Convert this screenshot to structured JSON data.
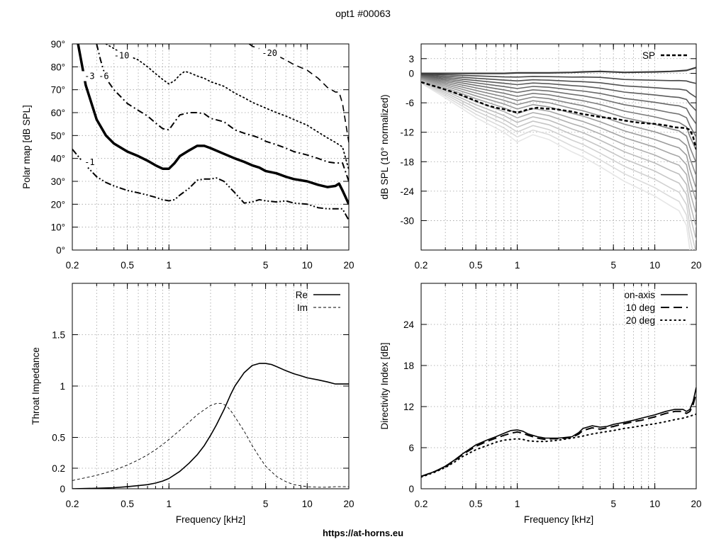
{
  "header": {
    "title": "opt1 #00063"
  },
  "footer": {
    "url": "https://at-horns.eu"
  },
  "chart_data": [
    {
      "id": "polar",
      "type": "line",
      "xlabel": "",
      "ylabel": "Polar map [dB SPL]",
      "xscale": "log",
      "xlim": [
        0.2,
        20
      ],
      "ylim": [
        0,
        90
      ],
      "xticks": [
        0.2,
        0.5,
        1,
        5,
        10,
        20
      ],
      "xtick_labels": [
        "0.2",
        "0.5",
        "1",
        "5",
        "10",
        "20"
      ],
      "yticks": [
        0,
        10,
        20,
        30,
        40,
        50,
        60,
        70,
        80,
        90
      ],
      "ytick_labels": [
        "0°",
        "10°",
        "20°",
        "30°",
        "40°",
        "50°",
        "60°",
        "70°",
        "80°",
        "90°"
      ],
      "grid": true,
      "series": [
        {
          "name": "-1",
          "style": "dashdotdot",
          "x": [
            0.2,
            0.25,
            0.3,
            0.35,
            0.4,
            0.5,
            0.6,
            0.7,
            0.8,
            0.9,
            1.0,
            1.1,
            1.2,
            1.4,
            1.6,
            1.8,
            2.0,
            2.2,
            2.5,
            3.0,
            3.5,
            4.0,
            4.5,
            5.0,
            6.0,
            7.0,
            8.0,
            10,
            12,
            14,
            16,
            18,
            20
          ],
          "y": [
            44,
            37,
            32,
            29.5,
            28,
            26,
            25,
            24,
            23,
            22,
            21.5,
            22,
            24,
            27,
            30.5,
            31,
            31,
            31.5,
            30,
            25,
            20.5,
            21,
            22,
            21.5,
            21,
            21.5,
            20.5,
            20,
            18.5,
            18,
            18,
            18,
            13
          ]
        },
        {
          "name": "-3",
          "style": "solid-bold",
          "x": [
            0.22,
            0.25,
            0.3,
            0.35,
            0.4,
            0.5,
            0.6,
            0.7,
            0.8,
            0.9,
            1.0,
            1.1,
            1.2,
            1.4,
            1.6,
            1.8,
            2.0,
            2.5,
            3.0,
            3.5,
            4.0,
            4.5,
            5.0,
            6.0,
            7.0,
            8.0,
            10,
            12,
            14,
            16,
            17,
            18,
            20
          ],
          "y": [
            90,
            72,
            57,
            50,
            46.5,
            43,
            41,
            39,
            37,
            35.5,
            35.5,
            38,
            41,
            43.5,
            45.5,
            45.5,
            44.5,
            42,
            40,
            38.5,
            37,
            36,
            34.5,
            33.5,
            32,
            31,
            30,
            28.5,
            27.5,
            28,
            29,
            26,
            20
          ]
        },
        {
          "name": "-6",
          "style": "dashdot",
          "x": [
            0.3,
            0.32,
            0.35,
            0.4,
            0.5,
            0.6,
            0.7,
            0.8,
            0.9,
            1.0,
            1.1,
            1.2,
            1.4,
            1.6,
            1.8,
            2.0,
            2.5,
            3.0,
            3.5,
            4.0,
            4.5,
            5.0,
            6.0,
            7.0,
            8.0,
            10,
            12,
            14,
            16,
            18,
            20
          ],
          "y": [
            90,
            83,
            75,
            70,
            64,
            61,
            58.5,
            55.5,
            53,
            52.5,
            56,
            59,
            60,
            60,
            59.5,
            57.5,
            56,
            52.5,
            51,
            50,
            49,
            47.5,
            46,
            44.5,
            43,
            41.5,
            40,
            38.5,
            38,
            38,
            30
          ]
        },
        {
          "name": "-10",
          "style": "dotted",
          "x": [
            0.35,
            0.4,
            0.45,
            0.5,
            0.6,
            0.7,
            0.8,
            0.9,
            1.0,
            1.1,
            1.2,
            1.3,
            1.4,
            1.6,
            1.8,
            2.0,
            2.5,
            3.0,
            3.5,
            4.0,
            5.0,
            6.0,
            7.0,
            8.0,
            10,
            12,
            14,
            16,
            18,
            20
          ],
          "y": [
            90,
            88,
            86,
            85,
            83,
            80,
            77,
            74.5,
            72.5,
            74,
            76.5,
            78,
            77.5,
            76,
            75,
            73.5,
            71.5,
            68.5,
            66.5,
            64.5,
            62,
            60,
            58.5,
            57,
            54.5,
            51.5,
            49,
            47,
            45,
            35
          ]
        },
        {
          "name": "-20",
          "style": "dashed",
          "x": [
            3.8,
            4.0,
            5.0,
            6.0,
            7.0,
            8.0,
            10,
            12,
            14,
            15,
            16,
            17,
            18,
            20
          ],
          "y": [
            90,
            89,
            87,
            85,
            83,
            81,
            78.5,
            75,
            71,
            70,
            69,
            69,
            64,
            47
          ]
        }
      ],
      "contour_labels": [
        {
          "text": "-1",
          "x": 0.245,
          "y": 37.5
        },
        {
          "text": "-3",
          "x": 0.245,
          "y": 75
        },
        {
          "text": "-6",
          "x": 0.31,
          "y": 75
        },
        {
          "text": "-10",
          "x": 0.4,
          "y": 84
        },
        {
          "text": "-20",
          "x": 4.7,
          "y": 85
        }
      ]
    },
    {
      "id": "spl",
      "type": "line",
      "xlabel": "",
      "ylabel": "dB SPL (10° normalized)",
      "xscale": "log",
      "xlim": [
        0.2,
        20
      ],
      "ylim": [
        -36,
        6
      ],
      "xticks": [
        0.2,
        0.5,
        1,
        5,
        10,
        20
      ],
      "xtick_labels": [
        "0.2",
        "0.5",
        "1",
        "5",
        "10",
        "20"
      ],
      "yticks": [
        3,
        0,
        -6,
        -12,
        -18,
        -24,
        -30
      ],
      "ytick_labels": [
        "3",
        "0",
        "-6",
        "-12",
        "-18",
        "-24",
        "-30"
      ],
      "grid": true,
      "legend": {
        "position": "top-right",
        "entries": [
          "SP"
        ]
      },
      "polar_family": {
        "curves": 17,
        "x": [
          0.2,
          0.3,
          0.5,
          0.8,
          1.0,
          1.3,
          1.7,
          2.5,
          3.0,
          4.0,
          6.0,
          10,
          13,
          15,
          17,
          18,
          20
        ],
        "onaxis": [
          0,
          0,
          0,
          0,
          0.1,
          0.1,
          0.1,
          0.2,
          0.3,
          0.4,
          0.2,
          0.3,
          0.4,
          0.5,
          0.6,
          0.8,
          1.2
        ],
        "deep_edge": [
          -1.5,
          -3.5,
          -6,
          -8.5,
          -10,
          -8.5,
          -9,
          -11,
          -12,
          -14,
          -17,
          -20,
          -22,
          -23,
          -25,
          -30,
          -38
        ],
        "light_edge": [
          -2,
          -5,
          -9,
          -12,
          -14,
          -12.5,
          -13.5,
          -16,
          -17,
          -19,
          -22,
          -25,
          -27,
          -28,
          -31,
          -36,
          -42
        ]
      },
      "series": [
        {
          "name": "SP",
          "style": "dashed-bold",
          "x": [
            0.2,
            0.3,
            0.4,
            0.5,
            0.6,
            0.7,
            0.8,
            0.9,
            1.0,
            1.1,
            1.2,
            1.4,
            1.6,
            1.8,
            2.0,
            2.5,
            3.0,
            3.5,
            4.0,
            5.0,
            6.0,
            7.0,
            8.0,
            10,
            12,
            14,
            16,
            17,
            18,
            19,
            20
          ],
          "y": [
            -1.8,
            -3.3,
            -4.5,
            -5.6,
            -6.5,
            -7.0,
            -7.3,
            -7.7,
            -8.0,
            -7.7,
            -7.3,
            -7.0,
            -7.2,
            -7.2,
            -7.4,
            -7.8,
            -8.3,
            -8.6,
            -8.9,
            -9.2,
            -9.6,
            -9.9,
            -10.1,
            -10.3,
            -10.6,
            -11.0,
            -11.1,
            -11.2,
            -11.5,
            -13.0,
            -15.5
          ]
        }
      ]
    },
    {
      "id": "impedance",
      "type": "line",
      "xlabel": "Frequency [kHz]",
      "ylabel": "Throat Impedance",
      "xscale": "log",
      "xlim": [
        0.2,
        20
      ],
      "ylim": [
        0,
        2
      ],
      "xticks": [
        0.2,
        0.5,
        1,
        5,
        10,
        20
      ],
      "xtick_labels": [
        "0.2",
        "0.5",
        "1",
        "5",
        "10",
        "20"
      ],
      "yticks": [
        0,
        0.2,
        0.5,
        1,
        1.5
      ],
      "ytick_labels": [
        "0",
        "0.2",
        "0.5",
        "1",
        "1.5"
      ],
      "grid": true,
      "legend": {
        "position": "top-right",
        "entries": [
          "Re",
          "Im"
        ]
      },
      "series": [
        {
          "name": "Re",
          "style": "solid",
          "x": [
            0.2,
            0.3,
            0.4,
            0.5,
            0.6,
            0.7,
            0.8,
            0.9,
            1.0,
            1.2,
            1.4,
            1.6,
            1.8,
            2.0,
            2.2,
            2.5,
            2.8,
            3.0,
            3.5,
            4.0,
            4.5,
            5.0,
            5.5,
            6.0,
            7.0,
            8.0,
            9.0,
            10,
            12,
            14,
            16,
            18,
            20
          ],
          "y": [
            0.0,
            0.005,
            0.01,
            0.02,
            0.03,
            0.04,
            0.055,
            0.075,
            0.1,
            0.17,
            0.25,
            0.33,
            0.42,
            0.52,
            0.62,
            0.77,
            0.92,
            1.0,
            1.13,
            1.2,
            1.22,
            1.22,
            1.21,
            1.19,
            1.15,
            1.12,
            1.1,
            1.08,
            1.06,
            1.04,
            1.02,
            1.02,
            1.02
          ]
        },
        {
          "name": "Im",
          "style": "dashed",
          "x": [
            0.2,
            0.3,
            0.4,
            0.5,
            0.6,
            0.7,
            0.8,
            0.9,
            1.0,
            1.2,
            1.4,
            1.6,
            1.8,
            2.0,
            2.2,
            2.4,
            2.6,
            2.8,
            3.0,
            3.5,
            4.0,
            4.5,
            5.0,
            6.0,
            7.0,
            8.0,
            10,
            12,
            14,
            16,
            18,
            20
          ],
          "y": [
            0.08,
            0.13,
            0.18,
            0.23,
            0.28,
            0.33,
            0.38,
            0.43,
            0.48,
            0.57,
            0.65,
            0.72,
            0.77,
            0.81,
            0.83,
            0.83,
            0.81,
            0.76,
            0.7,
            0.56,
            0.42,
            0.31,
            0.22,
            0.12,
            0.07,
            0.04,
            0.02,
            0.015,
            0.015,
            0.02,
            0.02,
            0.02
          ]
        }
      ]
    },
    {
      "id": "di",
      "type": "line",
      "xlabel": "Frequency [kHz]",
      "ylabel": "Directivity Index [dB]",
      "xscale": "log",
      "xlim": [
        0.2,
        20
      ],
      "ylim": [
        0,
        30
      ],
      "xticks": [
        0.2,
        0.5,
        1,
        5,
        10,
        20
      ],
      "xtick_labels": [
        "0.2",
        "0.5",
        "1",
        "5",
        "10",
        "20"
      ],
      "yticks": [
        0,
        6,
        12,
        18,
        24
      ],
      "ytick_labels": [
        "0",
        "6",
        "12",
        "18",
        "24"
      ],
      "grid": true,
      "legend": {
        "position": "top-right",
        "entries": [
          "on-axis",
          "10 deg",
          "20 deg"
        ]
      },
      "series": [
        {
          "name": "on-axis",
          "style": "solid",
          "x": [
            0.2,
            0.25,
            0.3,
            0.35,
            0.4,
            0.5,
            0.6,
            0.7,
            0.8,
            0.9,
            1.0,
            1.1,
            1.2,
            1.4,
            1.6,
            1.8,
            2.0,
            2.5,
            2.8,
            3.0,
            3.5,
            4.0,
            4.5,
            5.0,
            6.0,
            7.0,
            8.0,
            10,
            12,
            14,
            16,
            17,
            18,
            19,
            20
          ],
          "y": [
            1.8,
            2.5,
            3.3,
            4.2,
            5.1,
            6.4,
            7.1,
            7.6,
            8.1,
            8.5,
            8.6,
            8.4,
            8.0,
            7.6,
            7.4,
            7.4,
            7.4,
            7.6,
            8.2,
            8.8,
            9.2,
            9.0,
            9.1,
            9.4,
            9.7,
            10.0,
            10.3,
            10.8,
            11.3,
            11.6,
            11.6,
            11.3,
            11.6,
            12.8,
            14.8
          ]
        },
        {
          "name": "10 deg",
          "style": "dashed",
          "x": [
            0.2,
            0.25,
            0.3,
            0.35,
            0.4,
            0.5,
            0.6,
            0.7,
            0.8,
            0.9,
            1.0,
            1.1,
            1.2,
            1.4,
            1.6,
            1.8,
            2.0,
            2.5,
            2.8,
            3.0,
            3.5,
            4.0,
            4.5,
            5.0,
            6.0,
            7.0,
            8.0,
            10,
            12,
            14,
            16,
            17,
            18,
            19,
            20
          ],
          "y": [
            1.8,
            2.5,
            3.2,
            4.1,
            5.0,
            6.2,
            6.9,
            7.4,
            7.8,
            8.1,
            8.3,
            8.1,
            7.8,
            7.4,
            7.2,
            7.3,
            7.3,
            7.5,
            8.0,
            8.5,
            8.9,
            8.7,
            8.9,
            9.1,
            9.5,
            9.8,
            10.0,
            10.5,
            11.0,
            11.3,
            11.3,
            11.0,
            11.3,
            12.3,
            14.0
          ]
        },
        {
          "name": "20 deg",
          "style": "dotted",
          "x": [
            0.2,
            0.25,
            0.3,
            0.35,
            0.4,
            0.5,
            0.6,
            0.7,
            0.8,
            0.9,
            1.0,
            1.1,
            1.2,
            1.4,
            1.6,
            1.8,
            2.0,
            2.5,
            3.0,
            3.5,
            4.0,
            5.0,
            6.0,
            7.0,
            8.0,
            10,
            12,
            14,
            16,
            18,
            20
          ],
          "y": [
            1.7,
            2.4,
            3.1,
            3.9,
            4.7,
            5.7,
            6.3,
            6.8,
            7.1,
            7.2,
            7.3,
            7.2,
            7.0,
            6.9,
            6.9,
            7.0,
            7.1,
            7.4,
            7.7,
            8.0,
            8.2,
            8.5,
            8.8,
            9.0,
            9.2,
            9.5,
            9.8,
            10.1,
            10.3,
            10.6,
            10.9
          ]
        }
      ]
    }
  ]
}
